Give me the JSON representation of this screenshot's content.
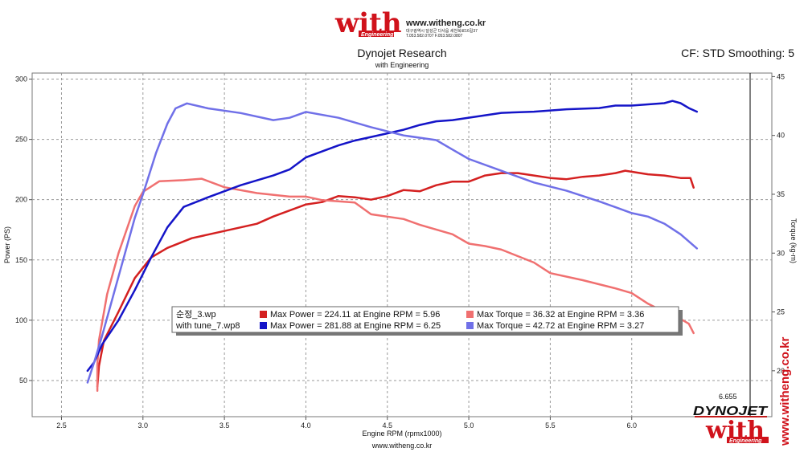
{
  "header": {
    "logo_text": "with",
    "logo_subtext": "Engineering",
    "website": "www.witheng.co.kr",
    "address_line": "대구광역시 달성군 다사읍 세천북로16길37",
    "phone_line": "T.053.582.0707 F.053.582.0807",
    "cf_label": "CF: STD Smoothing: 5"
  },
  "footer": {
    "website": "www.witheng.co.kr",
    "vertical_website": "www.witheng.co.kr",
    "dyno_logo": "DYNOJET",
    "brand_logo": "with",
    "brand_logo_sub": "Engineering",
    "cursor_value": "6.655"
  },
  "colors": {
    "run1_power": "#d42020",
    "run1_torque": "#f07070",
    "run2_power": "#1414c8",
    "run2_torque": "#7070e8",
    "grid": "#9a9a9a",
    "logo_red": "#d0121b"
  },
  "chart_data": {
    "type": "line",
    "title": "Dynojet Research",
    "subtitle": "with Engineering",
    "xlabel": "Engine RPM (rpmx1000)",
    "ylabel": "Power (PS)",
    "y2label": "Torque (kg-m)",
    "xlim": [
      2.32,
      6.86
    ],
    "ylim": [
      20,
      305
    ],
    "y2lim": [
      16.1,
      45.3
    ],
    "x_ticks": [
      2.5,
      3.0,
      3.5,
      4.0,
      4.5,
      5.0,
      5.5,
      6.0
    ],
    "x_tick_labels": [
      "2.5",
      "3.0",
      "3.5",
      "4.0",
      "4.5",
      "5.0",
      "5.5",
      "6.0"
    ],
    "y_ticks": [
      50,
      100,
      150,
      200,
      250,
      300
    ],
    "y_tick_labels": [
      "50",
      "100",
      "150",
      "200",
      "250",
      "300"
    ],
    "y2_ticks": [
      20,
      25,
      30,
      35,
      40,
      45
    ],
    "y2_tick_labels": [
      "20",
      "25",
      "30",
      "35",
      "40",
      "45"
    ],
    "grid": true,
    "legend": {
      "placement": "lower-center",
      "rows": [
        {
          "file": "순정_3.wp",
          "items": [
            {
              "label": "Max Power = 224.11 at Engine RPM = 5.96",
              "series": "run1_power"
            },
            {
              "label": "Max Torque = 36.32 at Engine RPM = 3.36",
              "series": "run1_torque"
            }
          ]
        },
        {
          "file": "with tune_7.wp8",
          "items": [
            {
              "label": "Max Power = 281.88 at Engine RPM = 6.25",
              "series": "run2_power"
            },
            {
              "label": "Max Torque = 42.72 at Engine RPM = 3.27",
              "series": "run2_torque"
            }
          ]
        }
      ]
    },
    "series": [
      {
        "id": "run1_power",
        "axis": "left",
        "points": [
          [
            2.72,
            45
          ],
          [
            2.73,
            62
          ],
          [
            2.76,
            83
          ],
          [
            2.85,
            107
          ],
          [
            2.95,
            135
          ],
          [
            3.05,
            152
          ],
          [
            3.15,
            160
          ],
          [
            3.3,
            168
          ],
          [
            3.5,
            174
          ],
          [
            3.7,
            180
          ],
          [
            3.8,
            186
          ],
          [
            4.0,
            196
          ],
          [
            4.1,
            198
          ],
          [
            4.2,
            203
          ],
          [
            4.3,
            202
          ],
          [
            4.4,
            200
          ],
          [
            4.5,
            203
          ],
          [
            4.6,
            208
          ],
          [
            4.7,
            207
          ],
          [
            4.8,
            212
          ],
          [
            4.9,
            215
          ],
          [
            5.0,
            215
          ],
          [
            5.1,
            220
          ],
          [
            5.2,
            222
          ],
          [
            5.3,
            222
          ],
          [
            5.4,
            220
          ],
          [
            5.5,
            218
          ],
          [
            5.6,
            217
          ],
          [
            5.7,
            219
          ],
          [
            5.8,
            220
          ],
          [
            5.9,
            222
          ],
          [
            5.96,
            224
          ],
          [
            6.1,
            221
          ],
          [
            6.2,
            220
          ],
          [
            6.3,
            218
          ],
          [
            6.36,
            218
          ],
          [
            6.38,
            210
          ]
        ]
      },
      {
        "id": "run1_torque",
        "axis": "right",
        "points": [
          [
            2.72,
            18.3
          ],
          [
            2.72,
            20.5
          ],
          [
            2.73,
            22.6
          ],
          [
            2.78,
            26.5
          ],
          [
            2.85,
            30.0
          ],
          [
            2.95,
            34.0
          ],
          [
            3.0,
            35.2
          ],
          [
            3.1,
            36.1
          ],
          [
            3.25,
            36.2
          ],
          [
            3.36,
            36.32
          ],
          [
            3.5,
            35.6
          ],
          [
            3.7,
            35.1
          ],
          [
            3.9,
            34.8
          ],
          [
            4.0,
            34.8
          ],
          [
            4.1,
            34.5
          ],
          [
            4.3,
            34.3
          ],
          [
            4.4,
            33.3
          ],
          [
            4.6,
            32.9
          ],
          [
            4.7,
            32.4
          ],
          [
            4.9,
            31.6
          ],
          [
            5.0,
            30.8
          ],
          [
            5.1,
            30.6
          ],
          [
            5.2,
            30.3
          ],
          [
            5.4,
            29.2
          ],
          [
            5.5,
            28.3
          ],
          [
            5.7,
            27.7
          ],
          [
            5.9,
            27.0
          ],
          [
            6.0,
            26.6
          ],
          [
            6.1,
            25.7
          ],
          [
            6.2,
            25.0
          ],
          [
            6.3,
            24.4
          ],
          [
            6.35,
            24.0
          ],
          [
            6.38,
            23.2
          ]
        ]
      },
      {
        "id": "run2_power",
        "axis": "left",
        "points": [
          [
            2.66,
            58
          ],
          [
            2.7,
            65
          ],
          [
            2.75,
            80
          ],
          [
            2.85,
            100
          ],
          [
            2.95,
            125
          ],
          [
            3.05,
            152
          ],
          [
            3.15,
            177
          ],
          [
            3.25,
            194
          ],
          [
            3.4,
            202
          ],
          [
            3.6,
            212
          ],
          [
            3.8,
            220
          ],
          [
            3.9,
            225
          ],
          [
            4.0,
            235
          ],
          [
            4.1,
            240
          ],
          [
            4.2,
            245
          ],
          [
            4.3,
            249
          ],
          [
            4.5,
            255
          ],
          [
            4.6,
            258
          ],
          [
            4.7,
            262
          ],
          [
            4.8,
            265
          ],
          [
            4.9,
            266
          ],
          [
            5.0,
            268
          ],
          [
            5.2,
            272
          ],
          [
            5.4,
            273
          ],
          [
            5.6,
            275
          ],
          [
            5.8,
            276
          ],
          [
            5.9,
            278
          ],
          [
            6.0,
            278
          ],
          [
            6.1,
            279
          ],
          [
            6.2,
            280
          ],
          [
            6.25,
            281.9
          ],
          [
            6.3,
            280
          ],
          [
            6.35,
            276
          ],
          [
            6.4,
            273
          ]
        ]
      },
      {
        "id": "run2_torque",
        "axis": "right",
        "points": [
          [
            2.66,
            19.0
          ],
          [
            2.7,
            20.7
          ],
          [
            2.75,
            23.0
          ],
          [
            2.85,
            28.0
          ],
          [
            2.95,
            33.0
          ],
          [
            3.0,
            35.0
          ],
          [
            3.08,
            38.5
          ],
          [
            3.15,
            41.0
          ],
          [
            3.2,
            42.3
          ],
          [
            3.27,
            42.72
          ],
          [
            3.4,
            42.3
          ],
          [
            3.6,
            41.9
          ],
          [
            3.8,
            41.3
          ],
          [
            3.9,
            41.5
          ],
          [
            4.0,
            42.0
          ],
          [
            4.2,
            41.5
          ],
          [
            4.4,
            40.7
          ],
          [
            4.6,
            40.0
          ],
          [
            4.8,
            39.6
          ],
          [
            4.9,
            38.8
          ],
          [
            5.0,
            38.0
          ],
          [
            5.2,
            37.0
          ],
          [
            5.4,
            36.0
          ],
          [
            5.6,
            35.3
          ],
          [
            5.8,
            34.4
          ],
          [
            5.9,
            33.9
          ],
          [
            6.0,
            33.4
          ],
          [
            6.1,
            33.1
          ],
          [
            6.2,
            32.5
          ],
          [
            6.3,
            31.6
          ],
          [
            6.4,
            30.4
          ]
        ]
      }
    ]
  }
}
